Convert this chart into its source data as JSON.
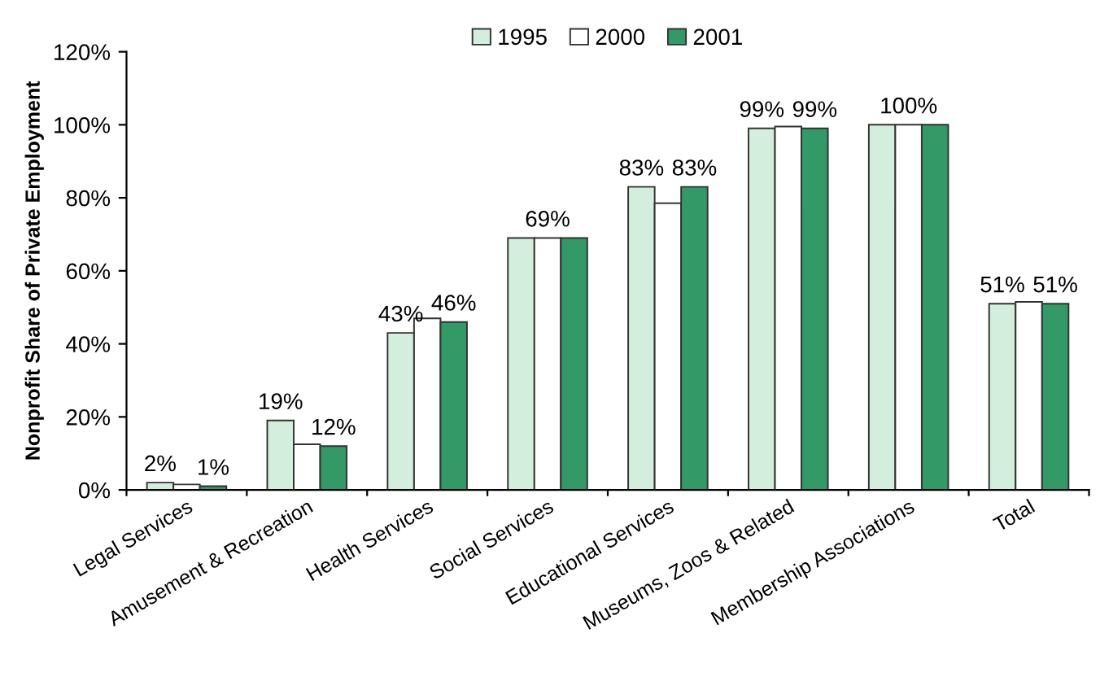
{
  "chart_data": {
    "type": "bar",
    "ylabel": "Nonprofit Share of Private Employment",
    "categories": [
      "Legal Services",
      "Amusement & Recreation",
      "Health Services",
      "Social Services",
      "Educational Services",
      "Museums, Zoos & Related",
      "Membership Associations",
      "Total"
    ],
    "series": [
      {
        "name": "1995",
        "color": "#d4eedd",
        "values": [
          2,
          19,
          43,
          69,
          83,
          99,
          100,
          51
        ],
        "value_labels": [
          "2%",
          "19%",
          "43%",
          null,
          "83%",
          "99%",
          null,
          "51%"
        ]
      },
      {
        "name": "2000",
        "color": "#ffffff",
        "values": [
          1.5,
          12.5,
          47,
          69,
          78.5,
          99.5,
          100,
          51.5
        ],
        "value_labels": [
          null,
          null,
          null,
          "69%",
          null,
          null,
          "100%",
          null
        ]
      },
      {
        "name": "2001",
        "color": "#339966",
        "values": [
          1,
          12,
          46,
          69,
          83,
          99,
          100,
          51
        ],
        "value_labels": [
          "1%",
          "12%",
          "46%",
          null,
          "83%",
          "99%",
          null,
          "51%"
        ]
      }
    ],
    "ylim": [
      0,
      120
    ],
    "yticks": [
      {
        "value": 0,
        "label": "0%"
      },
      {
        "value": 20,
        "label": "20%"
      },
      {
        "value": 40,
        "label": "40%"
      },
      {
        "value": 60,
        "label": "60%"
      },
      {
        "value": 80,
        "label": "80%"
      },
      {
        "value": 100,
        "label": "100%"
      },
      {
        "value": 120,
        "label": "120%"
      }
    ],
    "grid": false,
    "legend": "top"
  }
}
